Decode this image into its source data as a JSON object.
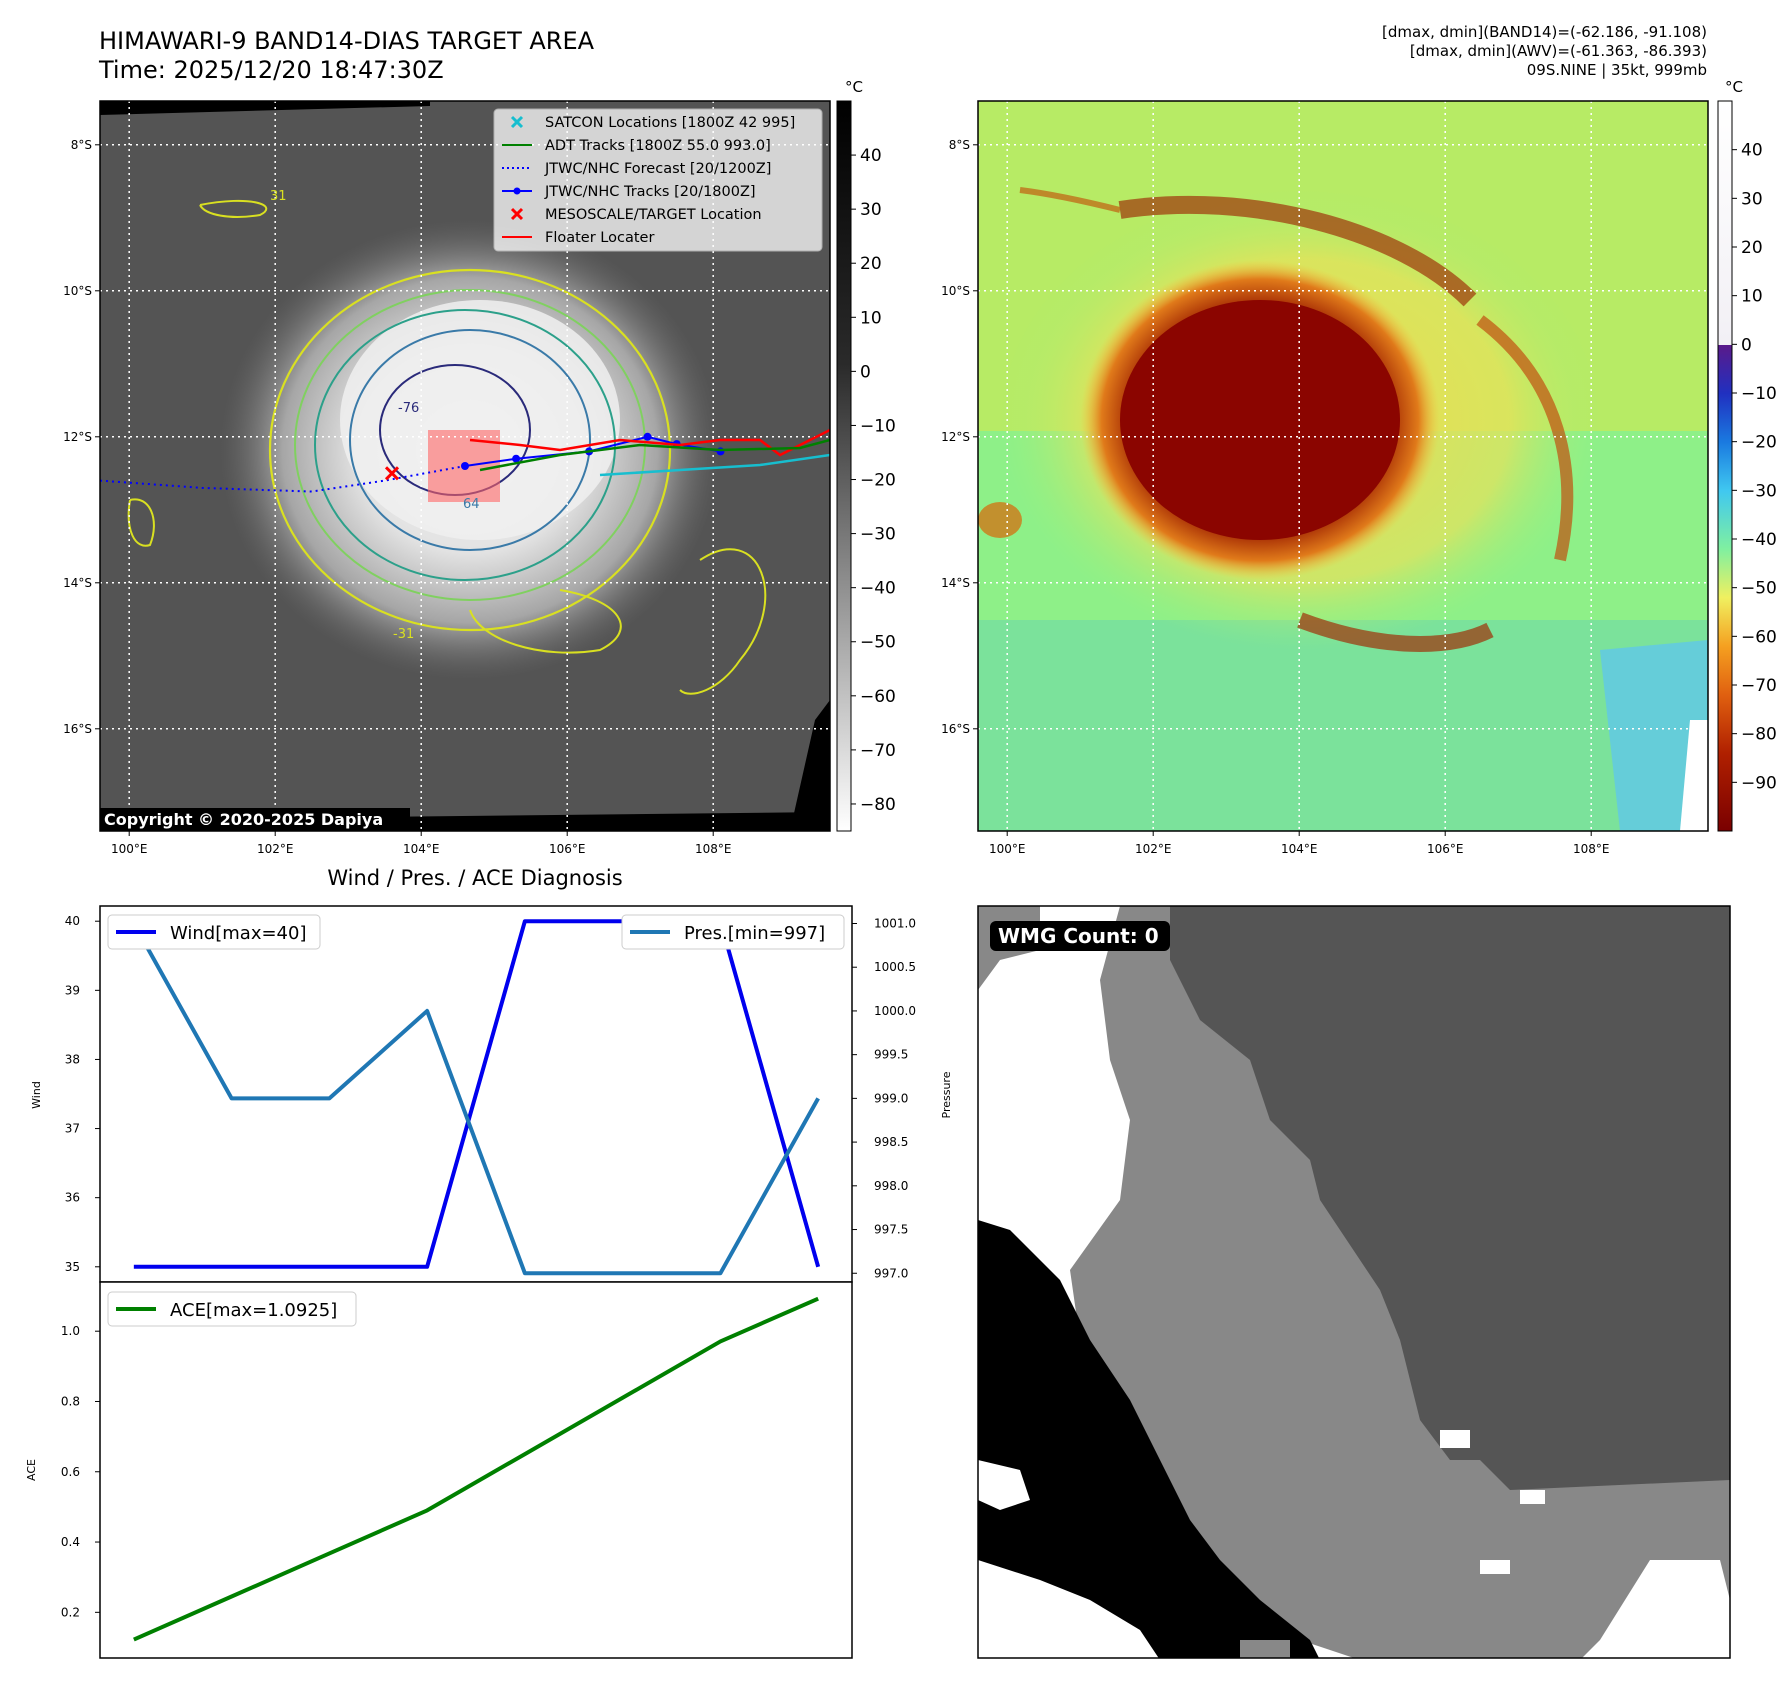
{
  "header": {
    "title_line1": "HIMAWARI-9 BAND14-DIAS TARGET AREA",
    "title_line2": "Time: 2025/12/20 18:47:30Z",
    "info_line1": "[dmax, dmin](BAND14)=(-62.186, -91.108)",
    "info_line2": "[dmax, dmin](AWV)=(-61.363, -86.393)",
    "info_line3": "09S.NINE | 35kt, 999mb"
  },
  "map_axes": {
    "lon_labels": [
      "100°E",
      "102°E",
      "104°E",
      "106°E",
      "108°E"
    ],
    "lat_labels": [
      "8°S",
      "10°S",
      "12°S",
      "14°S",
      "16°S"
    ],
    "lon_values": [
      100,
      102,
      104,
      106,
      108
    ],
    "lat_values": [
      -8,
      -10,
      -12,
      -14,
      -16
    ],
    "lon_range": [
      99.6,
      109.6
    ],
    "lat_range": [
      -17.4,
      -7.4
    ],
    "grid": true
  },
  "ir_panel": {
    "colorbar_unit": "°C",
    "colorbar_ticks": [
      "40",
      "30",
      "20",
      "10",
      "0",
      "−10",
      "−20",
      "−30",
      "−40",
      "−50",
      "−60",
      "−70",
      "−80"
    ],
    "colorbar_range": [
      -85,
      50
    ],
    "copyright": "Copyright © 2020-2025 Dapiya",
    "contour_labels": [
      "-76",
      "64",
      "-31",
      "31"
    ],
    "legend": [
      {
        "label": "SATCON Locations [1800Z 42 995]",
        "color": "#17becf",
        "marker": "x"
      },
      {
        "label": "ADT Tracks [1800Z 55.0 993.0]",
        "color": "#008000",
        "marker": "line"
      },
      {
        "label": "JTWC/NHC Forecast [20/1200Z]",
        "color": "#0000ff",
        "marker": "dotted"
      },
      {
        "label": "JTWC/NHC Tracks [20/1800Z]",
        "color": "#0000ff",
        "marker": "line-dot"
      },
      {
        "label": "MESOSCALE/TARGET Location",
        "color": "#ff0000",
        "marker": "x"
      },
      {
        "label": "Floater Locater",
        "color": "#ff0000",
        "marker": "line"
      }
    ],
    "target_location": {
      "lon": 103.6,
      "lat": -12.5
    },
    "jtwc_track": [
      [
        104.6,
        -12.4
      ],
      [
        105.3,
        -12.3
      ],
      [
        106.3,
        -12.2
      ],
      [
        107.1,
        -12.0
      ],
      [
        107.5,
        -12.1
      ],
      [
        108.1,
        -12.2
      ]
    ],
    "jtwc_forecast": [
      [
        99.6,
        -12.6
      ],
      [
        101.0,
        -12.7
      ],
      [
        102.5,
        -12.75
      ],
      [
        103.5,
        -12.6
      ],
      [
        104.6,
        -12.4
      ]
    ]
  },
  "awv_panel": {
    "colorbar_unit": "°C",
    "colorbar_ticks": [
      "40",
      "30",
      "20",
      "10",
      "0",
      "−10",
      "−20",
      "−30",
      "−40",
      "−50",
      "−60",
      "−70",
      "−80",
      "−90"
    ],
    "colorbar_range": [
      -100,
      50
    ]
  },
  "diagnosis": {
    "title": "Wind / Pres. / ACE Diagnosis"
  },
  "chart_data": [
    {
      "type": "line",
      "x": [
        0,
        1,
        2,
        3,
        4,
        5,
        6,
        7
      ],
      "series": [
        {
          "name": "Wind[max=40]",
          "axis": "left",
          "color": "#0000ee",
          "values": [
            35,
            35,
            35,
            35,
            40,
            40,
            40,
            35
          ]
        },
        {
          "name": "Pres.[min=997]",
          "axis": "right",
          "color": "#1f77b4",
          "values": [
            1001.0,
            999.0,
            999.0,
            1000.0,
            997.0,
            997.0,
            997.0,
            999.0
          ]
        }
      ],
      "ylabel": "Wind",
      "y2label": "Pressure",
      "ylim": [
        34.78,
        40.22
      ],
      "y2lim": [
        996.9,
        1001.2
      ],
      "yticks": [
        "35",
        "36",
        "37",
        "38",
        "39",
        "40"
      ],
      "y2ticks": [
        "997.0",
        "997.5",
        "998.0",
        "998.5",
        "999.0",
        "999.5",
        "1000.0",
        "1000.5",
        "1001.0"
      ],
      "legend": [
        "top-left",
        "top-right"
      ]
    },
    {
      "type": "line",
      "x": [
        0,
        1,
        2,
        3,
        4,
        5,
        6,
        7
      ],
      "series": [
        {
          "name": "ACE[max=1.0925]",
          "color": "#008000",
          "values": [
            0.1225,
            0.245,
            0.3675,
            0.49,
            0.6503,
            0.8106,
            0.9709,
            1.0925
          ]
        }
      ],
      "ylabel": "ACE",
      "ylim": [
        0.07,
        1.14
      ],
      "yticks": [
        "0.2",
        "0.4",
        "0.6",
        "0.8",
        "1.0"
      ],
      "legend": "top-left"
    }
  ],
  "wmg_panel": {
    "badge": "WMG Count: 0"
  }
}
